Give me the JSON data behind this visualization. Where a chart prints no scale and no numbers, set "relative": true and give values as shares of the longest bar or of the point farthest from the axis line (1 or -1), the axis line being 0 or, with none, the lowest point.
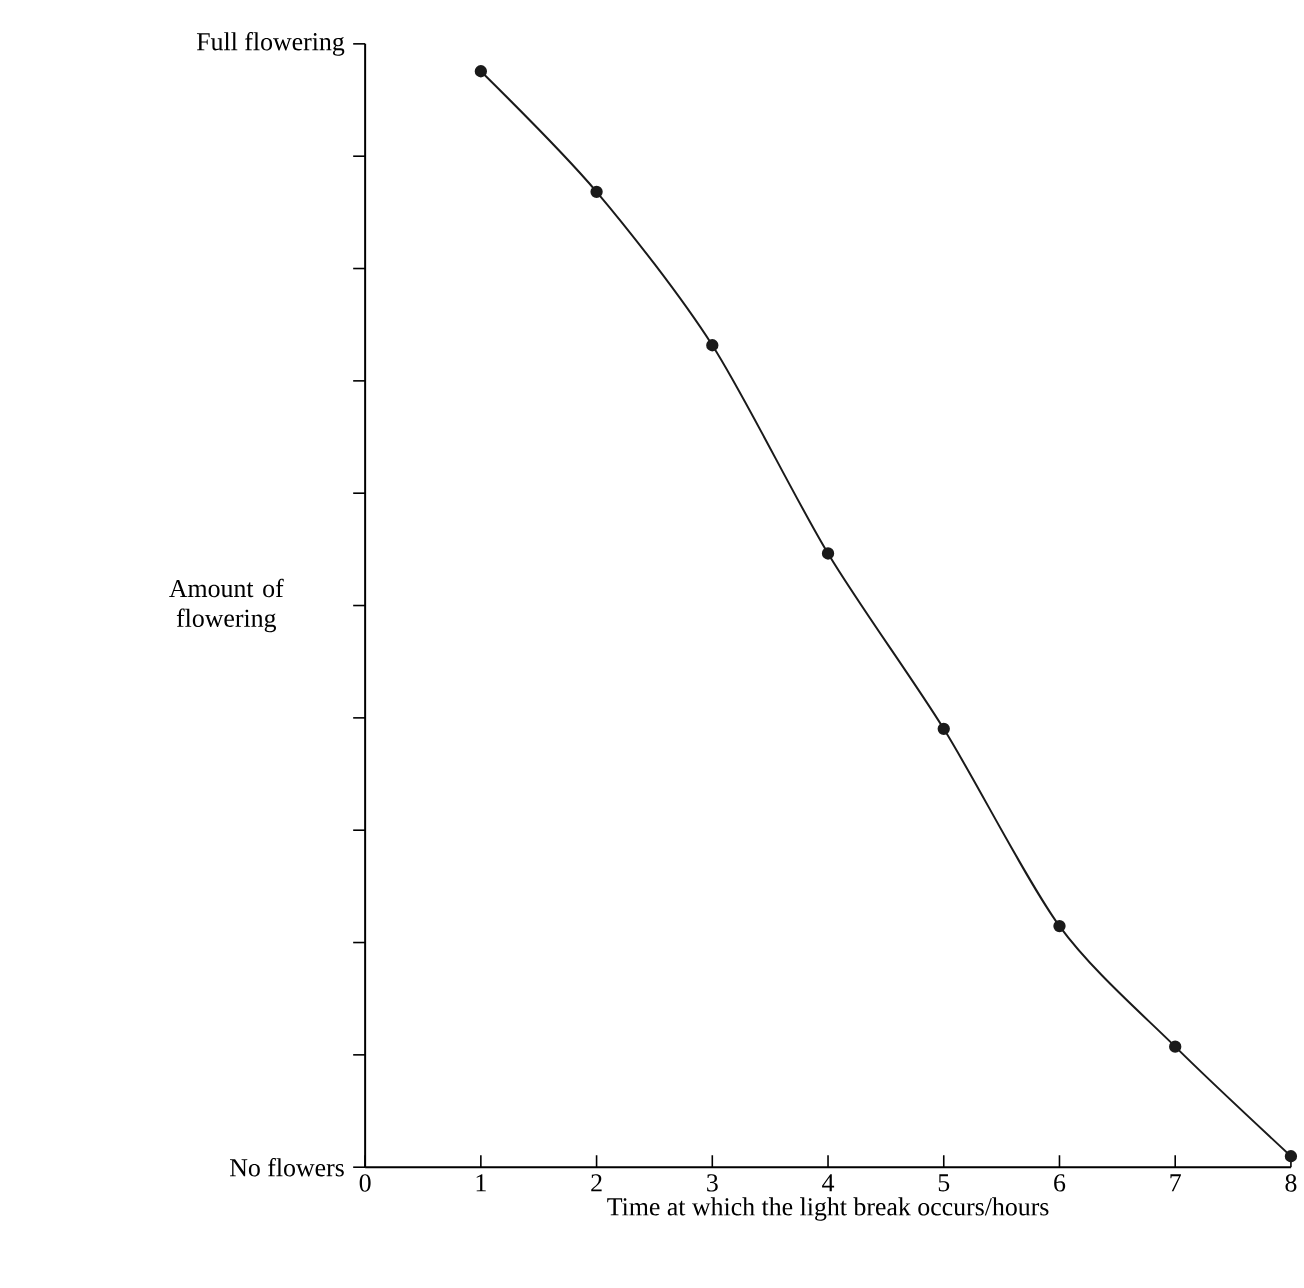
{
  "chart_data": {
    "type": "line",
    "xlabel": "Time at which the light break occurs/hours",
    "ylabel": "Amount of flowering",
    "annotations": [
      "Full flowering",
      "No flowers"
    ],
    "x": [
      1,
      2,
      3,
      4,
      5,
      6,
      7,
      8
    ],
    "series": [
      {
        "color": "#1a1a1a",
        "values": [
          1,
          0.89,
          0.75,
          0.56,
          0.4,
          0.22,
          0.11,
          0.01
        ]
      }
    ],
    "relative": true,
    "xlim": [
      0,
      8
    ],
    "xticks": [
      0,
      1,
      2,
      3,
      4,
      5,
      6,
      7,
      8
    ],
    "marker": "circle",
    "line_style": "solid"
  }
}
